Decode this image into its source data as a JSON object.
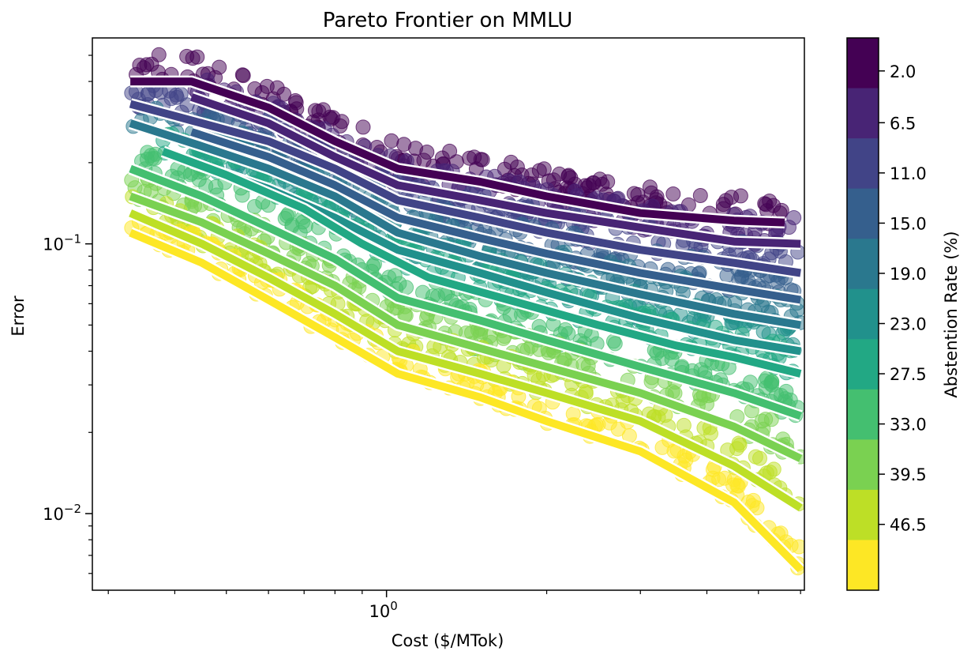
{
  "chart_data": {
    "type": "scatter",
    "title": "Pareto Frontier on MMLU",
    "xlabel": "Cost ($/MTok)",
    "ylabel": "Error",
    "x_scale": "log",
    "y_scale": "log",
    "xlim": [
      0.28,
      6.1
    ],
    "ylim": [
      0.0052,
      0.58
    ],
    "x_major_ticks": [
      {
        "value": 1,
        "label": "10^0"
      }
    ],
    "y_major_ticks": [
      {
        "value": 0.1,
        "label": "10^-1"
      },
      {
        "value": 0.01,
        "label": "10^-2"
      }
    ],
    "colorbar": {
      "label": "Abstention Rate (%)",
      "bins": [
        {
          "label": "2.0",
          "color": "#440154"
        },
        {
          "label": "6.5",
          "color": "#482475"
        },
        {
          "label": "11.0",
          "color": "#414487"
        },
        {
          "label": "15.0",
          "color": "#355f8d"
        },
        {
          "label": "19.0",
          "color": "#2a788e"
        },
        {
          "label": "23.0",
          "color": "#21918c"
        },
        {
          "label": "27.5",
          "color": "#22a884"
        },
        {
          "label": "33.0",
          "color": "#44bf70"
        },
        {
          "label": "39.5",
          "color": "#7ad151"
        },
        {
          "label": "46.5",
          "color": "#bddf26"
        },
        {
          "label": "",
          "color": "#fde725"
        }
      ]
    },
    "series": [
      {
        "abstention": 2.0,
        "color": "#440154",
        "x": [
          0.33,
          0.43,
          0.6,
          0.8,
          1.05,
          1.5,
          2.0,
          3.0,
          4.5,
          5.6
        ],
        "y": [
          0.4,
          0.4,
          0.32,
          0.24,
          0.19,
          0.17,
          0.15,
          0.13,
          0.122,
          0.12
        ]
      },
      {
        "abstention": 6.5,
        "color": "#482475",
        "x": [
          0.43,
          0.6,
          0.8,
          1.05,
          1.5,
          2.0,
          3.0,
          4.5,
          6.0
        ],
        "y": [
          0.35,
          0.28,
          0.21,
          0.165,
          0.145,
          0.13,
          0.115,
          0.102,
          0.1
        ]
      },
      {
        "abstention": 11.0,
        "color": "#414487",
        "x": [
          0.33,
          0.45,
          0.6,
          0.8,
          1.05,
          1.5,
          2.0,
          3.0,
          4.5,
          6.0
        ],
        "y": [
          0.33,
          0.28,
          0.24,
          0.19,
          0.145,
          0.125,
          0.11,
          0.095,
          0.085,
          0.078
        ]
      },
      {
        "abstention": 15.0,
        "color": "#355f8d",
        "x": [
          0.43,
          0.6,
          0.8,
          1.05,
          1.5,
          2.0,
          3.0,
          4.5,
          6.0
        ],
        "y": [
          0.26,
          0.21,
          0.165,
          0.125,
          0.105,
          0.092,
          0.078,
          0.068,
          0.062
        ]
      },
      {
        "abstention": 19.0,
        "color": "#2a788e",
        "x": [
          0.33,
          0.45,
          0.6,
          0.8,
          1.05,
          1.5,
          2.0,
          3.0,
          4.5,
          6.0
        ],
        "y": [
          0.28,
          0.23,
          0.19,
          0.15,
          0.11,
          0.09,
          0.078,
          0.065,
          0.055,
          0.05
        ]
      },
      {
        "abstention": 23.0,
        "color": "#21918c",
        "x": [
          0.43,
          0.6,
          0.8,
          1.05,
          1.5,
          2.0,
          3.0,
          4.5,
          6.0
        ],
        "y": [
          0.2,
          0.16,
          0.125,
          0.095,
          0.078,
          0.066,
          0.053,
          0.044,
          0.04
        ]
      },
      {
        "abstention": 27.5,
        "color": "#22a884",
        "x": [
          0.38,
          0.5,
          0.7,
          0.9,
          1.2,
          1.8,
          2.5,
          3.5,
          4.5,
          6.0
        ],
        "y": [
          0.22,
          0.18,
          0.135,
          0.1,
          0.075,
          0.06,
          0.05,
          0.042,
          0.038,
          0.033
        ]
      },
      {
        "abstention": 33.0,
        "color": "#44bf70",
        "x": [
          0.33,
          0.45,
          0.6,
          0.8,
          1.05,
          1.5,
          2.0,
          3.0,
          4.5,
          6.0
        ],
        "y": [
          0.19,
          0.15,
          0.115,
          0.088,
          0.063,
          0.052,
          0.044,
          0.035,
          0.028,
          0.023
        ]
      },
      {
        "abstention": 39.5,
        "color": "#7ad151",
        "x": [
          0.33,
          0.45,
          0.6,
          0.8,
          1.05,
          1.5,
          2.0,
          3.0,
          4.5,
          6.0
        ],
        "y": [
          0.15,
          0.12,
          0.092,
          0.07,
          0.05,
          0.041,
          0.035,
          0.028,
          0.021,
          0.016
        ]
      },
      {
        "abstention": 46.5,
        "color": "#bddf26",
        "x": [
          0.33,
          0.45,
          0.6,
          0.8,
          1.05,
          1.5,
          2.0,
          3.0,
          4.5,
          6.0
        ],
        "y": [
          0.13,
          0.1,
          0.075,
          0.055,
          0.04,
          0.033,
          0.028,
          0.022,
          0.015,
          0.0105
        ]
      },
      {
        "abstention": 50.0,
        "color": "#fde725",
        "x": [
          0.33,
          0.45,
          0.6,
          0.8,
          1.05,
          1.5,
          2.0,
          3.0,
          4.5,
          6.0
        ],
        "y": [
          0.11,
          0.085,
          0.062,
          0.045,
          0.033,
          0.027,
          0.022,
          0.017,
          0.011,
          0.0062
        ]
      }
    ],
    "grid": false,
    "legend": "colorbar-right"
  }
}
